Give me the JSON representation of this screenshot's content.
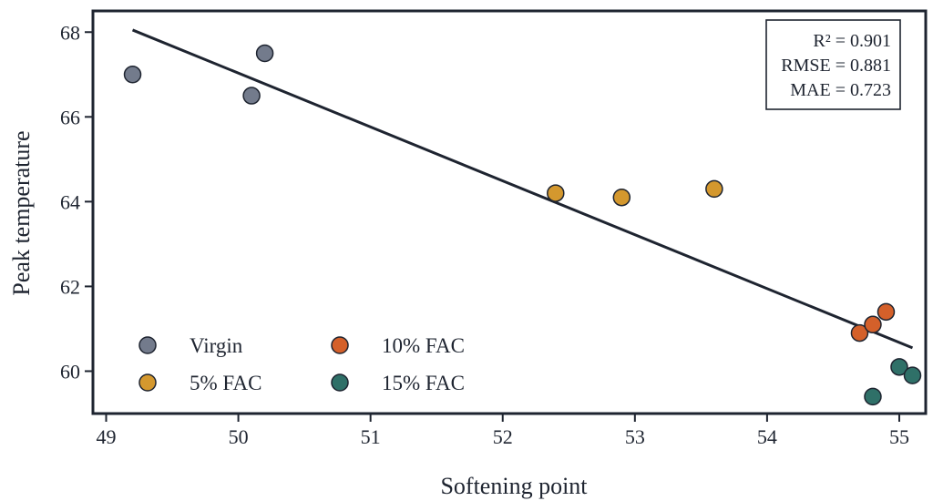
{
  "chart_data": {
    "type": "scatter",
    "title": "",
    "xlabel": "Softening point",
    "ylabel": "Peak temperature",
    "xlim": [
      48.9,
      55.2
    ],
    "ylim": [
      59.0,
      68.5
    ],
    "xticks": [
      49,
      50,
      51,
      52,
      53,
      54,
      55
    ],
    "yticks": [
      60,
      62,
      64,
      66,
      68
    ],
    "grid": false,
    "legend_position": "bottom-left",
    "series": [
      {
        "name": "Virgin",
        "color": "#737b8c",
        "points": [
          {
            "x": 49.2,
            "y": 67.0
          },
          {
            "x": 50.1,
            "y": 66.5
          },
          {
            "x": 50.2,
            "y": 67.5
          }
        ]
      },
      {
        "name": "5% FAC",
        "color": "#d4982e",
        "points": [
          {
            "x": 52.4,
            "y": 64.2
          },
          {
            "x": 52.9,
            "y": 64.1
          },
          {
            "x": 53.6,
            "y": 64.3
          }
        ]
      },
      {
        "name": "10% FAC",
        "color": "#d4602a",
        "points": [
          {
            "x": 54.7,
            "y": 60.9
          },
          {
            "x": 54.8,
            "y": 61.1
          },
          {
            "x": 54.9,
            "y": 61.4
          }
        ]
      },
      {
        "name": "15% FAC",
        "color": "#2f7068",
        "points": [
          {
            "x": 54.8,
            "y": 59.4
          },
          {
            "x": 55.0,
            "y": 60.1
          },
          {
            "x": 55.1,
            "y": 59.9
          }
        ]
      }
    ],
    "fit_line": {
      "color": "#1e2430",
      "x": [
        49.2,
        55.1
      ],
      "y": [
        68.05,
        60.55
      ]
    },
    "annotation": [
      "R² = 0.901",
      "RMSE = 0.881",
      "MAE = 0.723"
    ]
  }
}
